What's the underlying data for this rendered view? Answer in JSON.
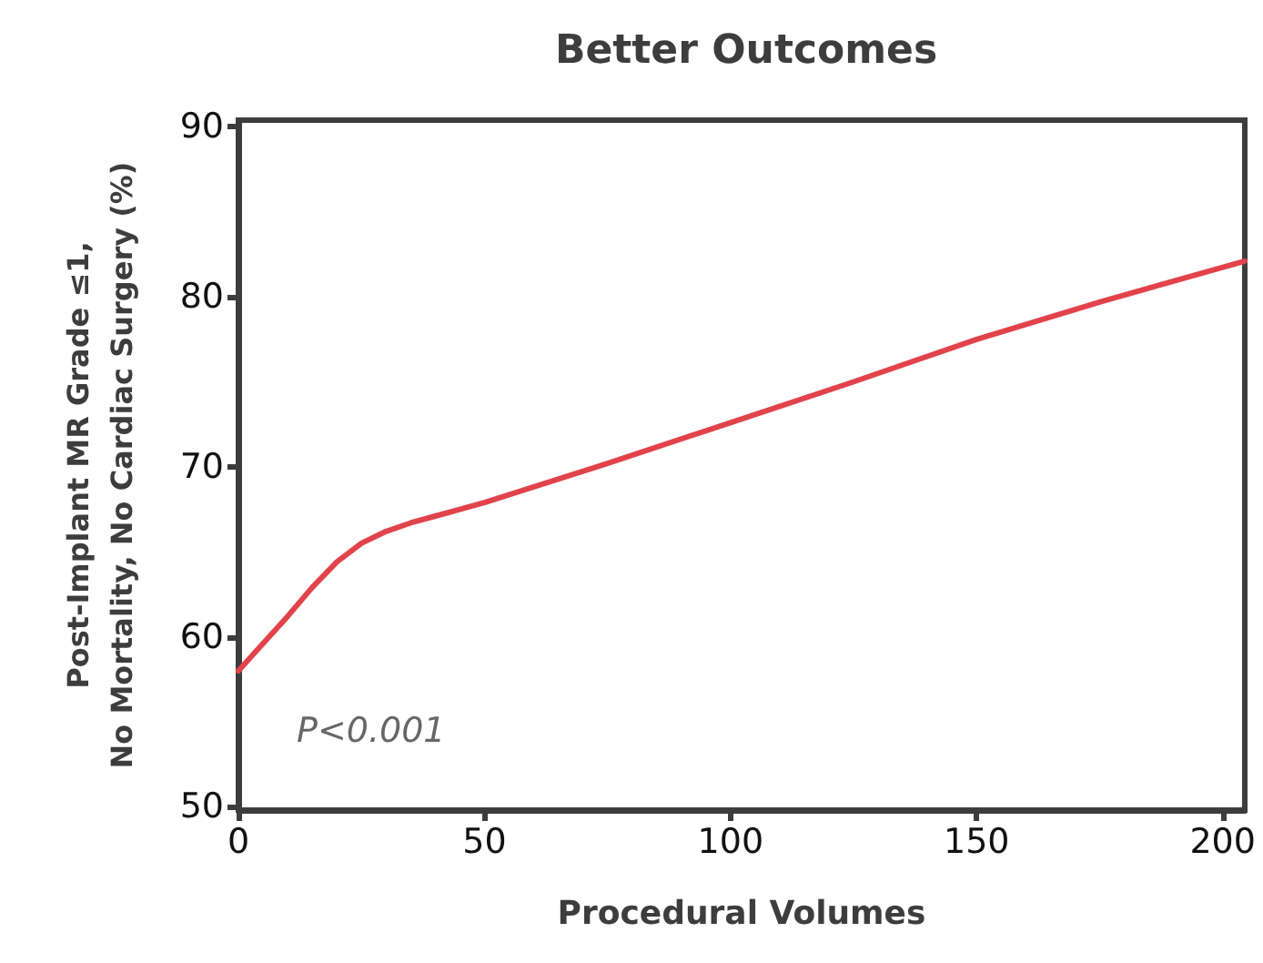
{
  "chart_data": {
    "type": "line",
    "title": "Better Outcomes",
    "xlabel": "Procedural Volumes",
    "ylabel": "Post-Implant MR Grade ≤1,\nNo Mortality, No Cardiac Surgery (%)",
    "x": [
      0,
      5,
      10,
      15,
      20,
      25,
      30,
      35,
      40,
      50,
      75,
      100,
      125,
      150,
      175,
      204.5
    ],
    "series": [
      {
        "color": "#e2434b",
        "values": [
          58.0,
          59.6,
          61.2,
          62.9,
          64.4,
          65.5,
          66.2,
          66.7,
          67.1,
          67.9,
          70.2,
          72.6,
          75.0,
          77.5,
          79.7,
          82.1
        ]
      }
    ],
    "xlim": [
      0,
      204.5
    ],
    "ylim": [
      49.8,
      90.4
    ],
    "xticks": [
      0,
      50,
      100,
      150,
      200
    ],
    "yticks": [
      50,
      60,
      70,
      80,
      90
    ],
    "annotations": [
      "P<0.001"
    ],
    "grid": false,
    "marker": "none",
    "line_style": "solid"
  }
}
